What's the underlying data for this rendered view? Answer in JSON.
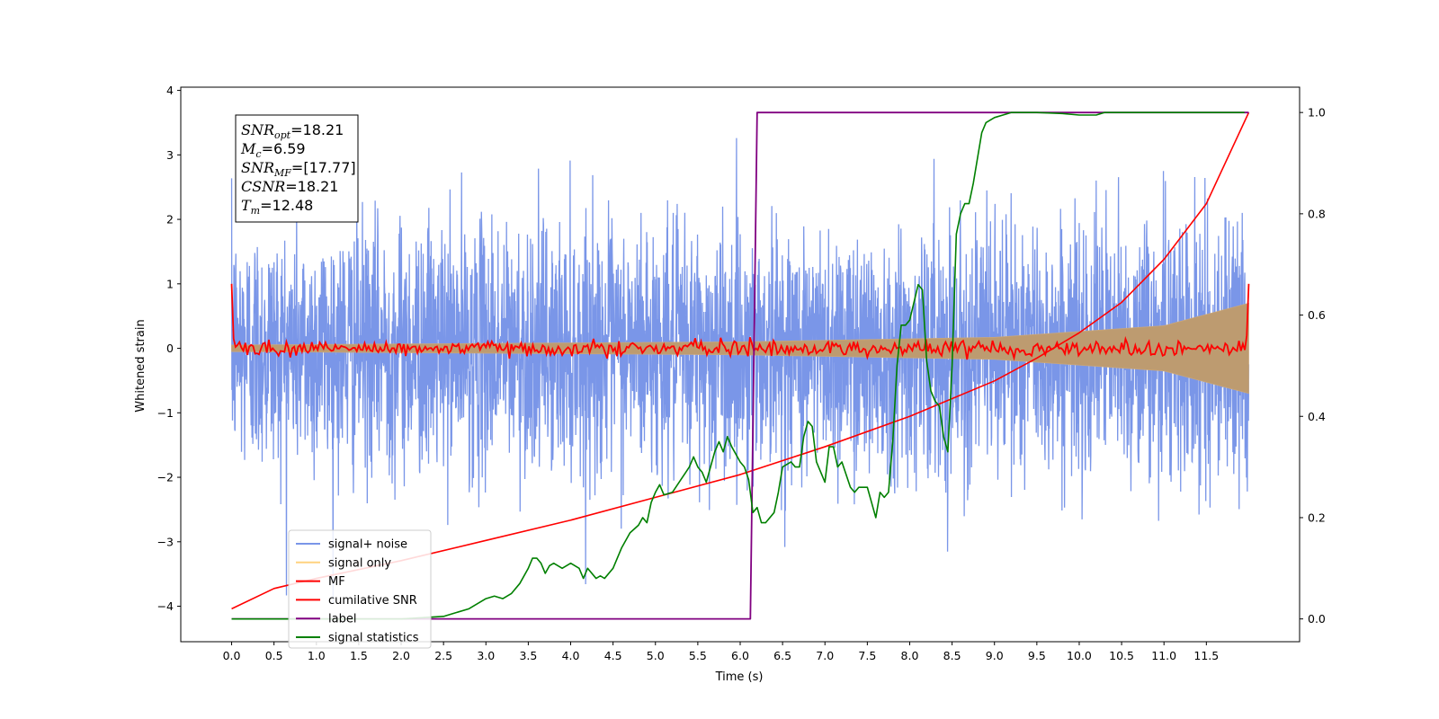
{
  "chart_data": {
    "type": "line",
    "xlabel": "Time (s)",
    "ylabel": "Whitened strain",
    "xlim": [
      -0.6,
      12.6
    ],
    "ylim": [
      -4.55,
      4.05
    ],
    "y2lim": [
      -0.045,
      1.05
    ],
    "xticks": [
      "0.0",
      "0.5",
      "1.0",
      "1.5",
      "2.0",
      "2.5",
      "3.0",
      "3.5",
      "4.0",
      "4.5",
      "5.0",
      "5.5",
      "6.0",
      "6.5",
      "7.0",
      "7.5",
      "8.0",
      "8.5",
      "9.0",
      "9.5",
      "10.0",
      "10.5",
      "11.0",
      "11.5"
    ],
    "yticks": [
      "4",
      "3",
      "2",
      "1",
      "0",
      "−1",
      "−2",
      "−3",
      "−4"
    ],
    "y2ticks": [
      "1.0",
      "0.8",
      "0.6",
      "0.4",
      "0.2",
      "0.0"
    ],
    "annotation": {
      "lines": [
        {
          "label": "SNR",
          "sub": "opt",
          "value": "=18.21"
        },
        {
          "label": "M",
          "sub": "c",
          "value": "=6.59"
        },
        {
          "label": "SNR",
          "sub": "MF",
          "value": "=[17.77]"
        },
        {
          "label": "CSNR",
          "sub": "",
          "value": "=18.21"
        },
        {
          "label": "T",
          "sub": "m",
          "value": "=12.48"
        }
      ]
    },
    "legend": {
      "position": "lower left",
      "entries": [
        {
          "name": "signal+ noise",
          "color": "#7a96e8"
        },
        {
          "name": "signal only",
          "color": "#ffd27f"
        },
        {
          "name": "MF",
          "color": "#ff0000"
        },
        {
          "name": "cumilative SNR",
          "color": "#ff0000"
        },
        {
          "name": "label",
          "color": "#800080"
        },
        {
          "name": "signal statistics",
          "color": "#008000"
        }
      ]
    },
    "series": [
      {
        "name": "signal+ noise",
        "axis": "left",
        "x_range": [
          0.0,
          12.0
        ],
        "amplitude_typical": 1.0,
        "amplitude_peak": 3.65
      },
      {
        "name": "signal only",
        "axis": "left",
        "x_range": [
          0.0,
          12.0
        ],
        "envelope": [
          {
            "x": 0.0,
            "amp": 0.05
          },
          {
            "x": 6.0,
            "amp": 0.1
          },
          {
            "x": 9.0,
            "amp": 0.17
          },
          {
            "x": 11.0,
            "amp": 0.35
          },
          {
            "x": 12.0,
            "amp": 0.7
          }
        ]
      },
      {
        "name": "MF",
        "axis": "left",
        "x_range": [
          0.0,
          12.0
        ],
        "baseline": 0.0,
        "noise_amp": 0.06,
        "start_value": 1.0,
        "end_value": 1.0
      },
      {
        "name": "cumilative SNR",
        "axis": "right",
        "x": [
          0.0,
          0.5,
          1.0,
          2.0,
          3.0,
          4.0,
          5.0,
          6.0,
          7.0,
          8.0,
          9.0,
          9.5,
          10.0,
          10.5,
          11.0,
          11.5,
          12.0
        ],
        "y": [
          0.02,
          0.06,
          0.08,
          0.115,
          0.155,
          0.195,
          0.24,
          0.285,
          0.34,
          0.4,
          0.47,
          0.515,
          0.565,
          0.625,
          0.71,
          0.82,
          1.0
        ]
      },
      {
        "name": "label",
        "axis": "right",
        "x": [
          0.0,
          6.12,
          6.2,
          12.0
        ],
        "y": [
          0.0,
          0.0,
          1.0,
          1.0
        ]
      },
      {
        "name": "signal statistics",
        "axis": "right",
        "x": [
          0.0,
          0.5,
          1.0,
          1.5,
          2.0,
          2.5,
          2.6,
          2.8,
          2.9,
          3.0,
          3.1,
          3.2,
          3.3,
          3.4,
          3.5,
          3.55,
          3.6,
          3.65,
          3.7,
          3.75,
          3.8,
          3.9,
          4.0,
          4.1,
          4.15,
          4.2,
          4.3,
          4.35,
          4.4,
          4.5,
          4.6,
          4.7,
          4.8,
          4.85,
          4.9,
          4.95,
          5.0,
          5.05,
          5.1,
          5.2,
          5.3,
          5.4,
          5.45,
          5.5,
          5.55,
          5.6,
          5.7,
          5.75,
          5.8,
          5.85,
          5.9,
          6.0,
          6.05,
          6.1,
          6.15,
          6.2,
          6.25,
          6.3,
          6.4,
          6.45,
          6.5,
          6.6,
          6.65,
          6.7,
          6.75,
          6.8,
          6.85,
          6.9,
          7.0,
          7.05,
          7.1,
          7.15,
          7.2,
          7.3,
          7.35,
          7.4,
          7.5,
          7.55,
          7.6,
          7.65,
          7.7,
          7.75,
          7.8,
          7.85,
          7.9,
          7.95,
          8.0,
          8.1,
          8.15,
          8.2,
          8.25,
          8.3,
          8.35,
          8.4,
          8.45,
          8.5,
          8.55,
          8.6,
          8.65,
          8.7,
          8.75,
          8.8,
          8.85,
          8.9,
          9.0,
          9.1,
          9.2,
          9.3,
          9.5,
          9.8,
          10.0,
          10.2,
          10.3,
          10.5,
          11.0,
          11.5,
          11.95
        ],
        "y": [
          0.0,
          0.0,
          0.0,
          0.0,
          0.0,
          0.005,
          0.01,
          0.02,
          0.03,
          0.04,
          0.045,
          0.04,
          0.05,
          0.07,
          0.1,
          0.12,
          0.12,
          0.11,
          0.09,
          0.105,
          0.11,
          0.1,
          0.11,
          0.1,
          0.08,
          0.1,
          0.08,
          0.085,
          0.08,
          0.1,
          0.14,
          0.17,
          0.185,
          0.2,
          0.19,
          0.23,
          0.25,
          0.265,
          0.245,
          0.25,
          0.275,
          0.3,
          0.32,
          0.3,
          0.29,
          0.27,
          0.33,
          0.35,
          0.33,
          0.36,
          0.34,
          0.31,
          0.3,
          0.275,
          0.21,
          0.22,
          0.19,
          0.19,
          0.21,
          0.25,
          0.3,
          0.31,
          0.3,
          0.3,
          0.36,
          0.39,
          0.38,
          0.31,
          0.27,
          0.34,
          0.34,
          0.3,
          0.31,
          0.26,
          0.25,
          0.26,
          0.26,
          0.23,
          0.2,
          0.25,
          0.24,
          0.25,
          0.35,
          0.5,
          0.58,
          0.58,
          0.59,
          0.66,
          0.65,
          0.51,
          0.45,
          0.43,
          0.42,
          0.36,
          0.33,
          0.5,
          0.76,
          0.8,
          0.82,
          0.82,
          0.86,
          0.91,
          0.96,
          0.98,
          0.99,
          0.995,
          1.0,
          1.0,
          1.0,
          0.998,
          0.995,
          0.995,
          1.0,
          1.0,
          1.0,
          1.0,
          1.0
        ]
      }
    ]
  }
}
